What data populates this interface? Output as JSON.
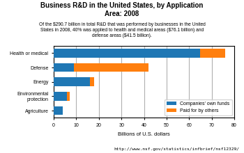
{
  "chart_data": {
    "type": "bar",
    "orientation": "horizontal",
    "stacked": true,
    "title": "Business R&D in the United States, by Application\nArea: 2008",
    "subtitle": "Of the $290.7 billion in total R&D that was performed by businesses in the United\nStates in 2008, 40% was applied to health and medical areas ($76.1 billion) and\ndefense areas ($41.5 billion).",
    "categories": [
      "Health or medical",
      "Defense",
      "Energy",
      "Environmental\nprotection",
      "Agriculture"
    ],
    "series": [
      {
        "name": "Companies' own funds",
        "values": [
          65,
          9,
          16,
          6,
          4
        ]
      },
      {
        "name": "Paid for by others",
        "values": [
          11,
          33,
          2,
          1,
          0
        ]
      }
    ],
    "xlabel": "Billions of U.S. dollars",
    "xlim": [
      0,
      80
    ],
    "xticks": [
      0,
      10,
      20,
      30,
      40,
      50,
      60,
      70,
      80
    ],
    "grid": true,
    "legend": "lower right",
    "annotations": [
      "http://www.nsf.gov/statistics/infbrief/nsf12329/"
    ]
  }
}
